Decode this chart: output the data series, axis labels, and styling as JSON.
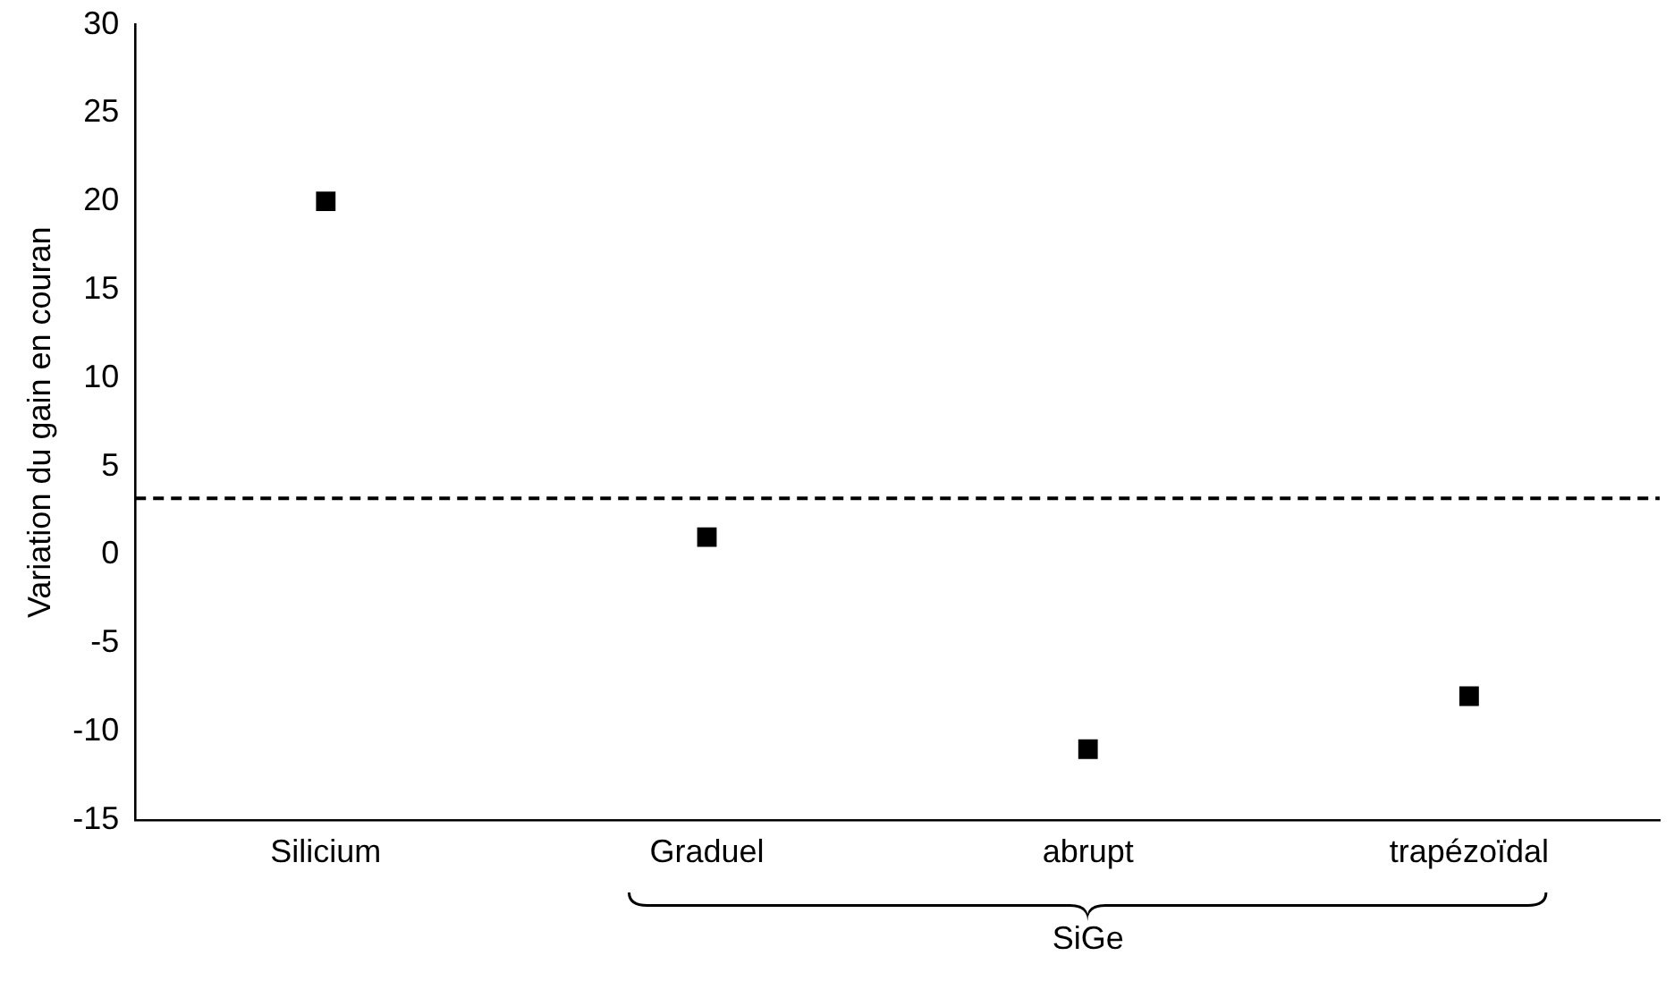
{
  "chart_data": {
    "type": "scatter",
    "ylabel": "Variation du gain en couran",
    "categories": [
      "Silicium",
      "Graduel",
      "abrupt",
      "trapézoïdal"
    ],
    "series": [
      {
        "color": "#000000",
        "values": [
          20,
          1,
          -11,
          -8
        ]
      }
    ],
    "ylim": [
      -15,
      30
    ],
    "yticks": [
      -15,
      -10,
      -5,
      0,
      5,
      10,
      15,
      20,
      25,
      30
    ],
    "grid": false,
    "legend": false,
    "marker": "square",
    "ref_lines": [
      {
        "axis": "y",
        "value": 3.2,
        "color": "#000000",
        "line_style": "dashed"
      }
    ],
    "annotations": [
      "SiGe"
    ]
  }
}
